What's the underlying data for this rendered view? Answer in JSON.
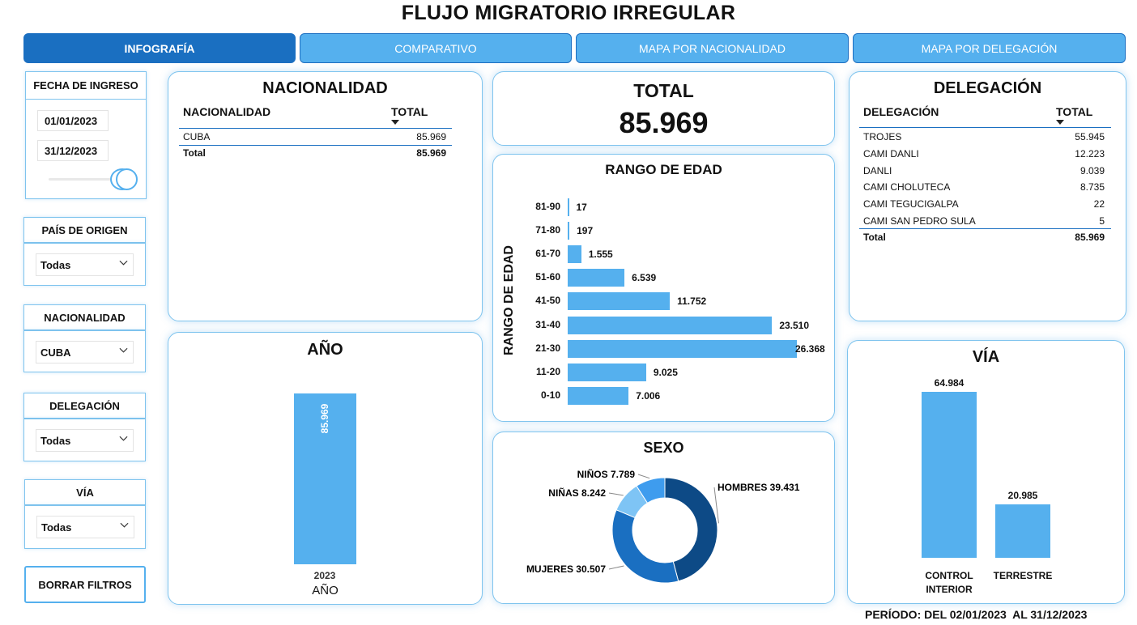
{
  "title": "FLUJO MIGRATORIO IRREGULAR",
  "tabs": [
    {
      "label": "INFOGRAFÍA"
    },
    {
      "label": "COMPARATIVO"
    },
    {
      "label": "MAPA POR NACIONALIDAD"
    },
    {
      "label": "MAPA POR DELEGACIÓN"
    }
  ],
  "filters": {
    "fecha": {
      "label": "FECHA DE INGRESO",
      "from": "01/01/2023",
      "to": "31/12/2023",
      "range_fraction": [
        0.0,
        1.0
      ]
    },
    "pais": {
      "label": "PAÍS DE ORIGEN",
      "value": "Todas"
    },
    "nacionalidad": {
      "label": "NACIONALIDAD",
      "value": "CUBA"
    },
    "delegacion": {
      "label": "DELEGACIÓN",
      "value": "Todas"
    },
    "via": {
      "label": "VÍA",
      "value": "Todas"
    },
    "clear_button": "BORRAR FILTROS"
  },
  "nacionalidad_table": {
    "title": "NACIONALIDAD",
    "col1": "NACIONALIDAD",
    "col2": "TOTAL",
    "rows": [
      {
        "name": "CUBA",
        "value": "85.969"
      }
    ],
    "total_label": "Total",
    "total_value": "85.969"
  },
  "total_card": {
    "label": "TOTAL",
    "value": "85.969"
  },
  "delegacion_table": {
    "title": "DELEGACIÓN",
    "col1": "DELEGACIÓN",
    "col2": "TOTAL",
    "rows": [
      {
        "name": "TROJES",
        "value": "55.945"
      },
      {
        "name": "CAMI DANLI",
        "value": "12.223"
      },
      {
        "name": "DANLI",
        "value": "9.039"
      },
      {
        "name": "CAMI CHOLUTECA",
        "value": "8.735"
      },
      {
        "name": "CAMI TEGUCIGALPA",
        "value": "22"
      },
      {
        "name": "CAMI SAN PEDRO SULA",
        "value": "5"
      }
    ],
    "total_label": "Total",
    "total_value": "85.969"
  },
  "period": {
    "text": "PERÍODO: DEL 02/01/2023  AL 31/12/2023"
  },
  "chart_data": [
    {
      "id": "anio",
      "type": "bar",
      "title": "AÑO",
      "xlabel": "AÑO",
      "categories": [
        "2023"
      ],
      "values": [
        85969
      ],
      "value_labels": [
        "85.969"
      ],
      "color": "#55b0ee"
    },
    {
      "id": "edad",
      "type": "bar",
      "orientation": "horizontal",
      "title": "RANGO DE EDAD",
      "ylabel": "RANGO DE EDAD",
      "categories": [
        "81-90",
        "71-80",
        "61-70",
        "51-60",
        "41-50",
        "31-40",
        "21-30",
        "11-20",
        "0-10"
      ],
      "values": [
        17,
        197,
        1555,
        6539,
        11752,
        23510,
        26368,
        9025,
        7006
      ],
      "value_labels": [
        "17",
        "197",
        "1.555",
        "6.539",
        "11.752",
        "23.510",
        "26.368",
        "9.025",
        "7.006"
      ],
      "color": "#55b0ee"
    },
    {
      "id": "sexo",
      "type": "pie",
      "title": "SEXO",
      "donut": true,
      "slices": [
        {
          "label": "HOMBRES 39.431",
          "value": 39431,
          "color": "#0d4a86"
        },
        {
          "label": "MUJERES 30.507",
          "value": 30507,
          "color": "#1a6fc1"
        },
        {
          "label": "NIÑAS 8.242",
          "value": 8242,
          "color": "#7ec4f5"
        },
        {
          "label": "NIÑOS 7.789",
          "value": 7789,
          "color": "#3e9cee"
        }
      ]
    },
    {
      "id": "via",
      "type": "bar",
      "title": "VÍA",
      "categories": [
        "CONTROL INTERIOR",
        "TERRESTRE"
      ],
      "values": [
        64984,
        20985
      ],
      "value_labels": [
        "64.984",
        "20.985"
      ],
      "color": "#55b0ee"
    }
  ]
}
